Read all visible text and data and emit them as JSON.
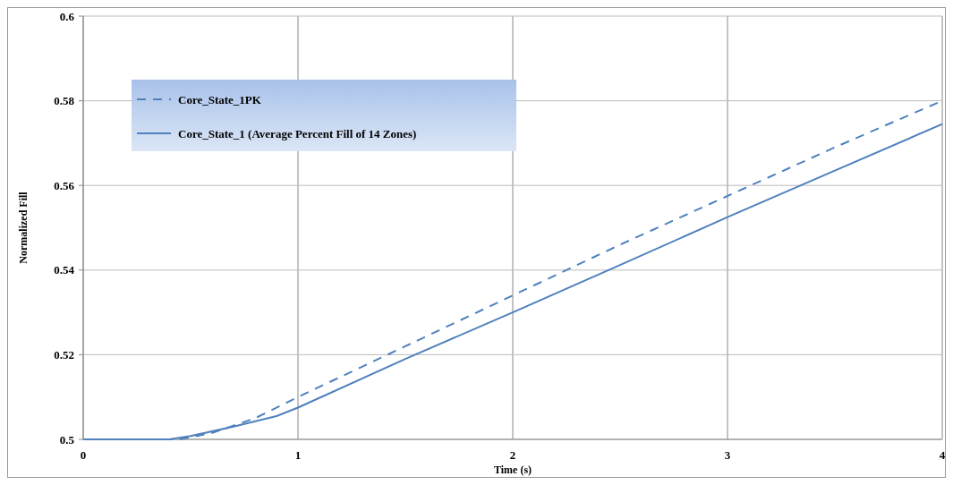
{
  "chart_data": {
    "type": "line",
    "xlabel": "Time (s)",
    "ylabel": "Normalized Fill",
    "xlim": [
      0,
      4
    ],
    "xticks": [
      0,
      1,
      2,
      3,
      4
    ],
    "ylim": [
      0.5,
      0.6
    ],
    "yticks": [
      0.5,
      0.52,
      0.54,
      0.56,
      0.58,
      0.6
    ],
    "grid": true,
    "legend": "top left",
    "series": [
      {
        "name": "Core_State_1PK",
        "color": "#4f81bd",
        "line_style": "dashed",
        "x": [
          0,
          0.45,
          0.6,
          0.8,
          1,
          1.5,
          2,
          2.5,
          3,
          3.5,
          4
        ],
        "values": [
          0.5,
          0.5,
          0.5015,
          0.505,
          0.51,
          0.522,
          0.534,
          0.546,
          0.5575,
          0.569,
          0.58
        ]
      },
      {
        "name": "Core_State_1 (Average Percent Fill of 14 Zones)",
        "color": "#4f81bd",
        "line_style": "solid",
        "x": [
          0,
          0.4,
          0.5,
          0.7,
          0.9,
          1,
          1.5,
          2,
          2.5,
          3,
          3.5,
          4
        ],
        "values": [
          0.5,
          0.5,
          0.5008,
          0.503,
          0.5055,
          0.5075,
          0.519,
          0.53,
          0.5412,
          0.5525,
          0.5635,
          0.5745
        ]
      }
    ]
  }
}
